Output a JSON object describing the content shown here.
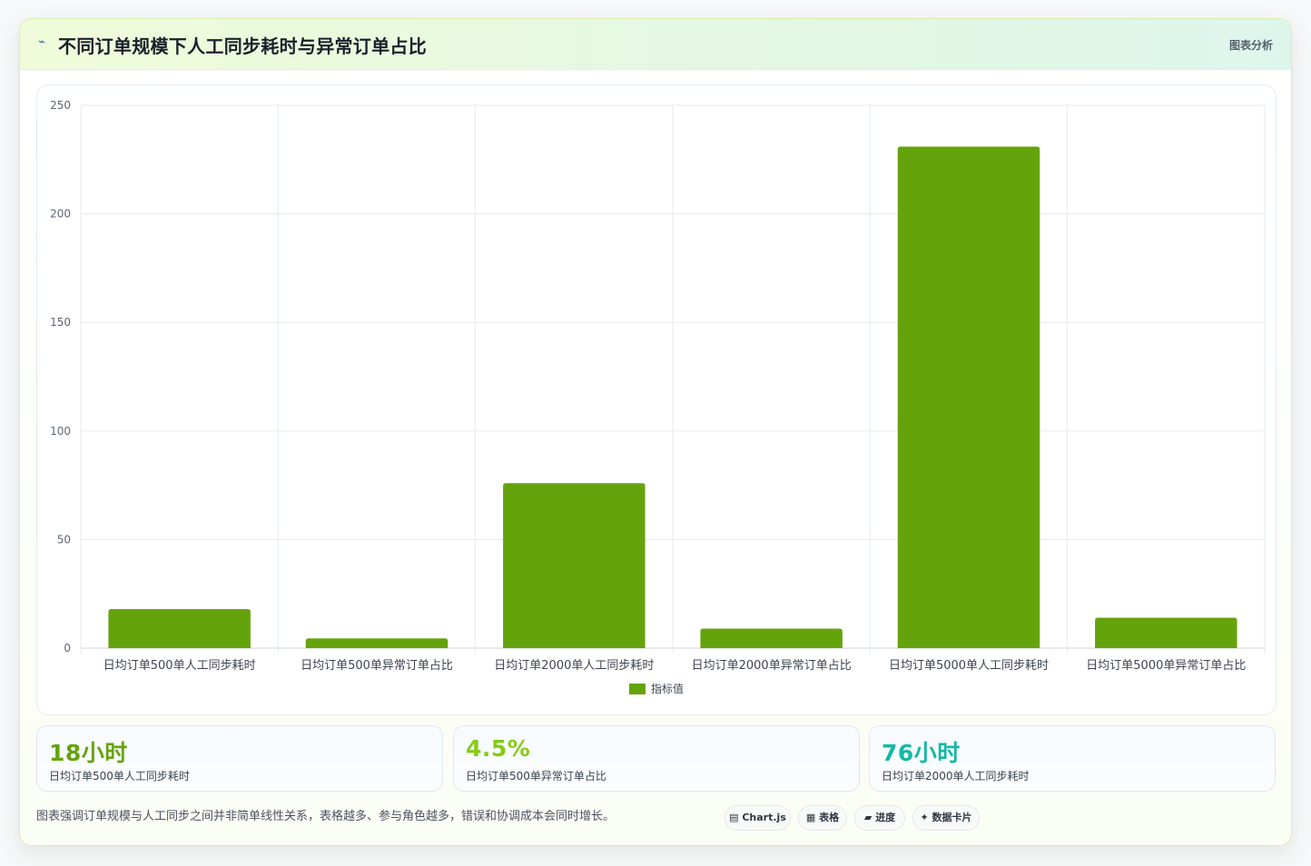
{
  "header": {
    "icon": "chart-line-icon",
    "title": "不同订单规模下人工同步耗时与异常订单占比",
    "tag": "图表分析"
  },
  "chart_data": {
    "type": "bar",
    "categories": [
      "日均订单500单人工同步耗时",
      "日均订单500单异常订单占比",
      "日均订单2000单人工同步耗时",
      "日均订单2000单异常订单占比",
      "日均订单5000单人工同步耗时",
      "日均订单5000单异常订单占比"
    ],
    "series": [
      {
        "name": "指标值",
        "values": [
          18,
          4.5,
          76,
          9,
          231,
          14
        ]
      }
    ],
    "ylim": [
      0,
      250
    ],
    "yticks": [
      0,
      50,
      100,
      150,
      200,
      250
    ],
    "grid": true,
    "legend": "bottom",
    "bar_color": "#65a30d"
  },
  "stats": [
    {
      "value": "18小时",
      "label": "日均订单500单人工同步耗时",
      "color": "#65a30d"
    },
    {
      "value": "4.5%",
      "label": "日均订单500单异常订单占比",
      "color": "#84cc16"
    },
    {
      "value": "76小时",
      "label": "日均订单2000单人工同步耗时",
      "color": "#14b8a6"
    }
  ],
  "footnote": "图表强调订单规模与人工同步之间并非简单线性关系，表格越多、参与角色越多，错误和协调成本会同时增长。",
  "pills": [
    {
      "icon": "chart-icon",
      "glyph": "▤",
      "label": "Chart.js"
    },
    {
      "icon": "table-icon",
      "glyph": "▦",
      "label": "表格"
    },
    {
      "icon": "progress-icon",
      "glyph": "▰",
      "label": "进度"
    },
    {
      "icon": "sparkle-icon",
      "glyph": "✦",
      "label": "数据卡片"
    }
  ]
}
